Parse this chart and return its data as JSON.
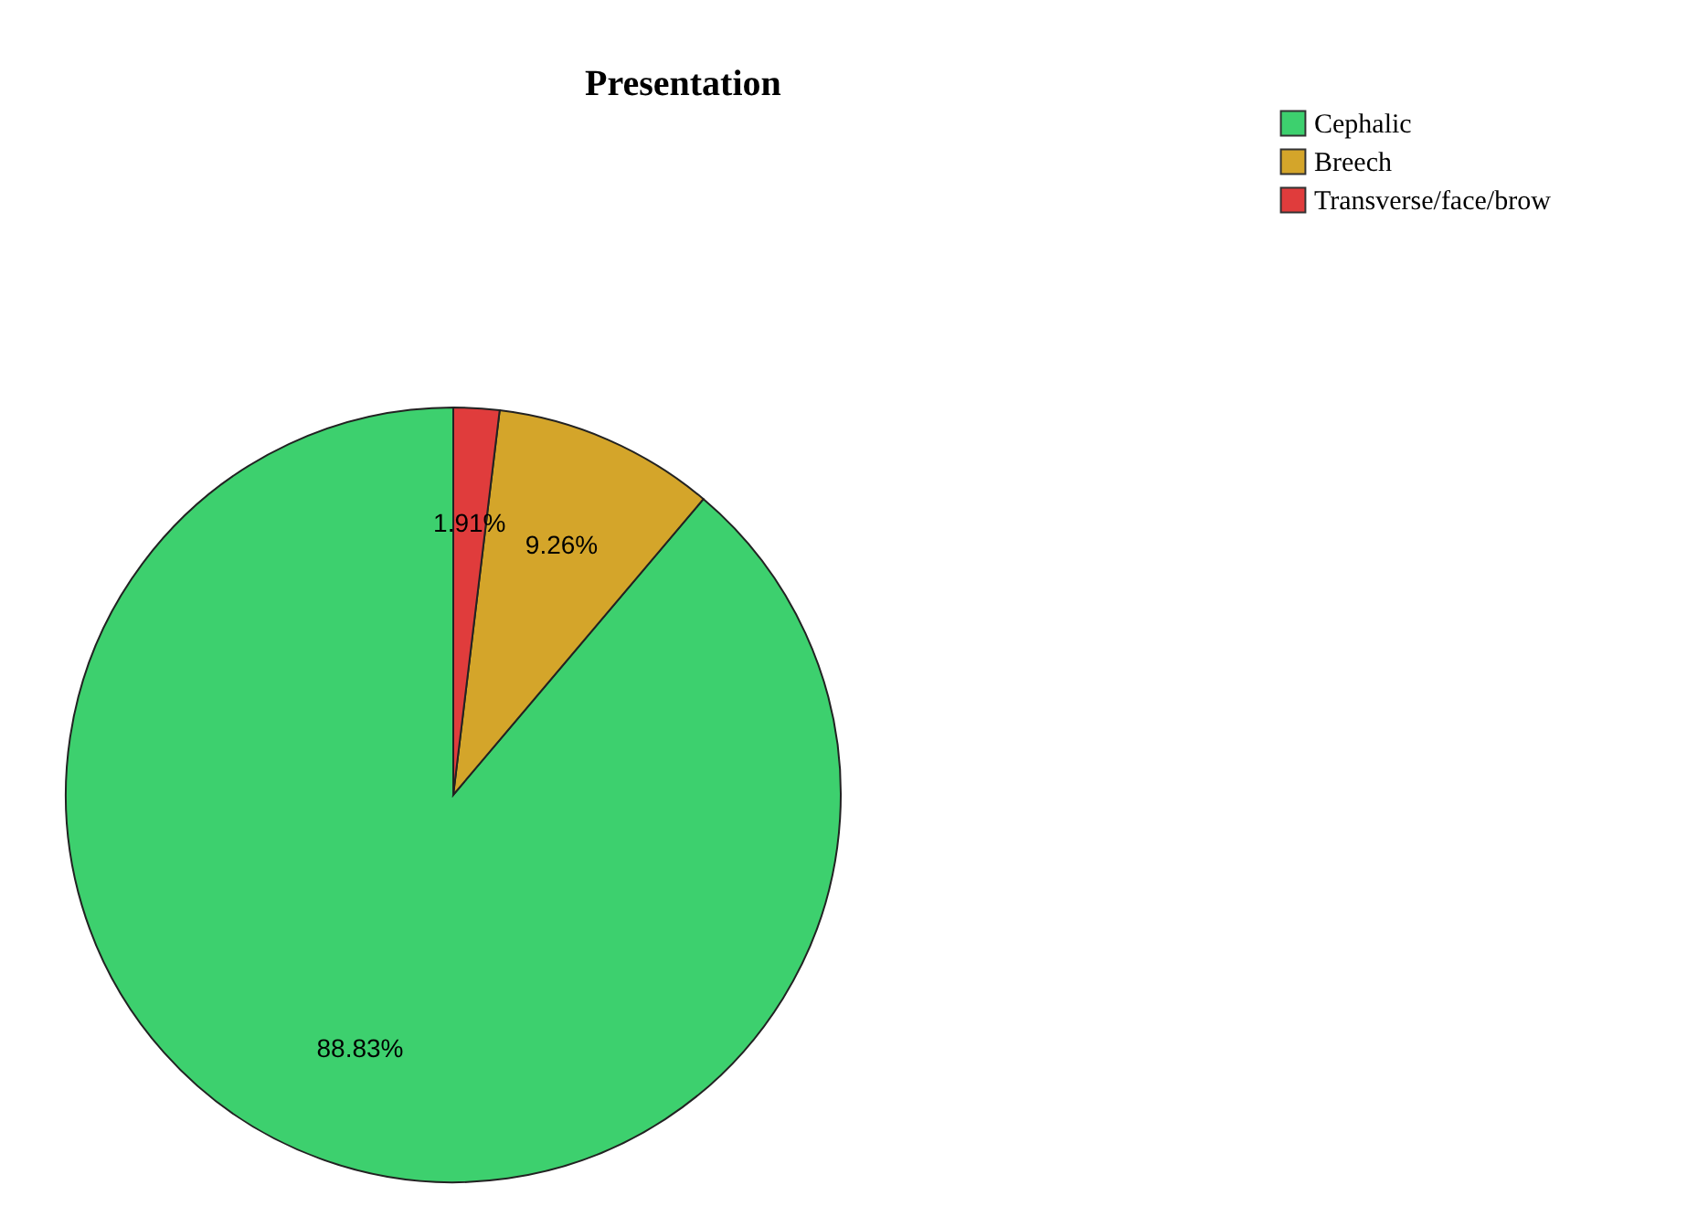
{
  "chart_data": {
    "type": "pie",
    "title": "Presentation",
    "categories": [
      "Cephalic",
      "Breech",
      "Transverse/face/brow"
    ],
    "values": [
      88.83,
      9.26,
      1.91
    ],
    "colors": [
      "#3dd06e",
      "#d4a52a",
      "#e03c3c"
    ],
    "value_labels": [
      "88.83%",
      "9.26%",
      "1.91%"
    ],
    "legend": "top right"
  }
}
